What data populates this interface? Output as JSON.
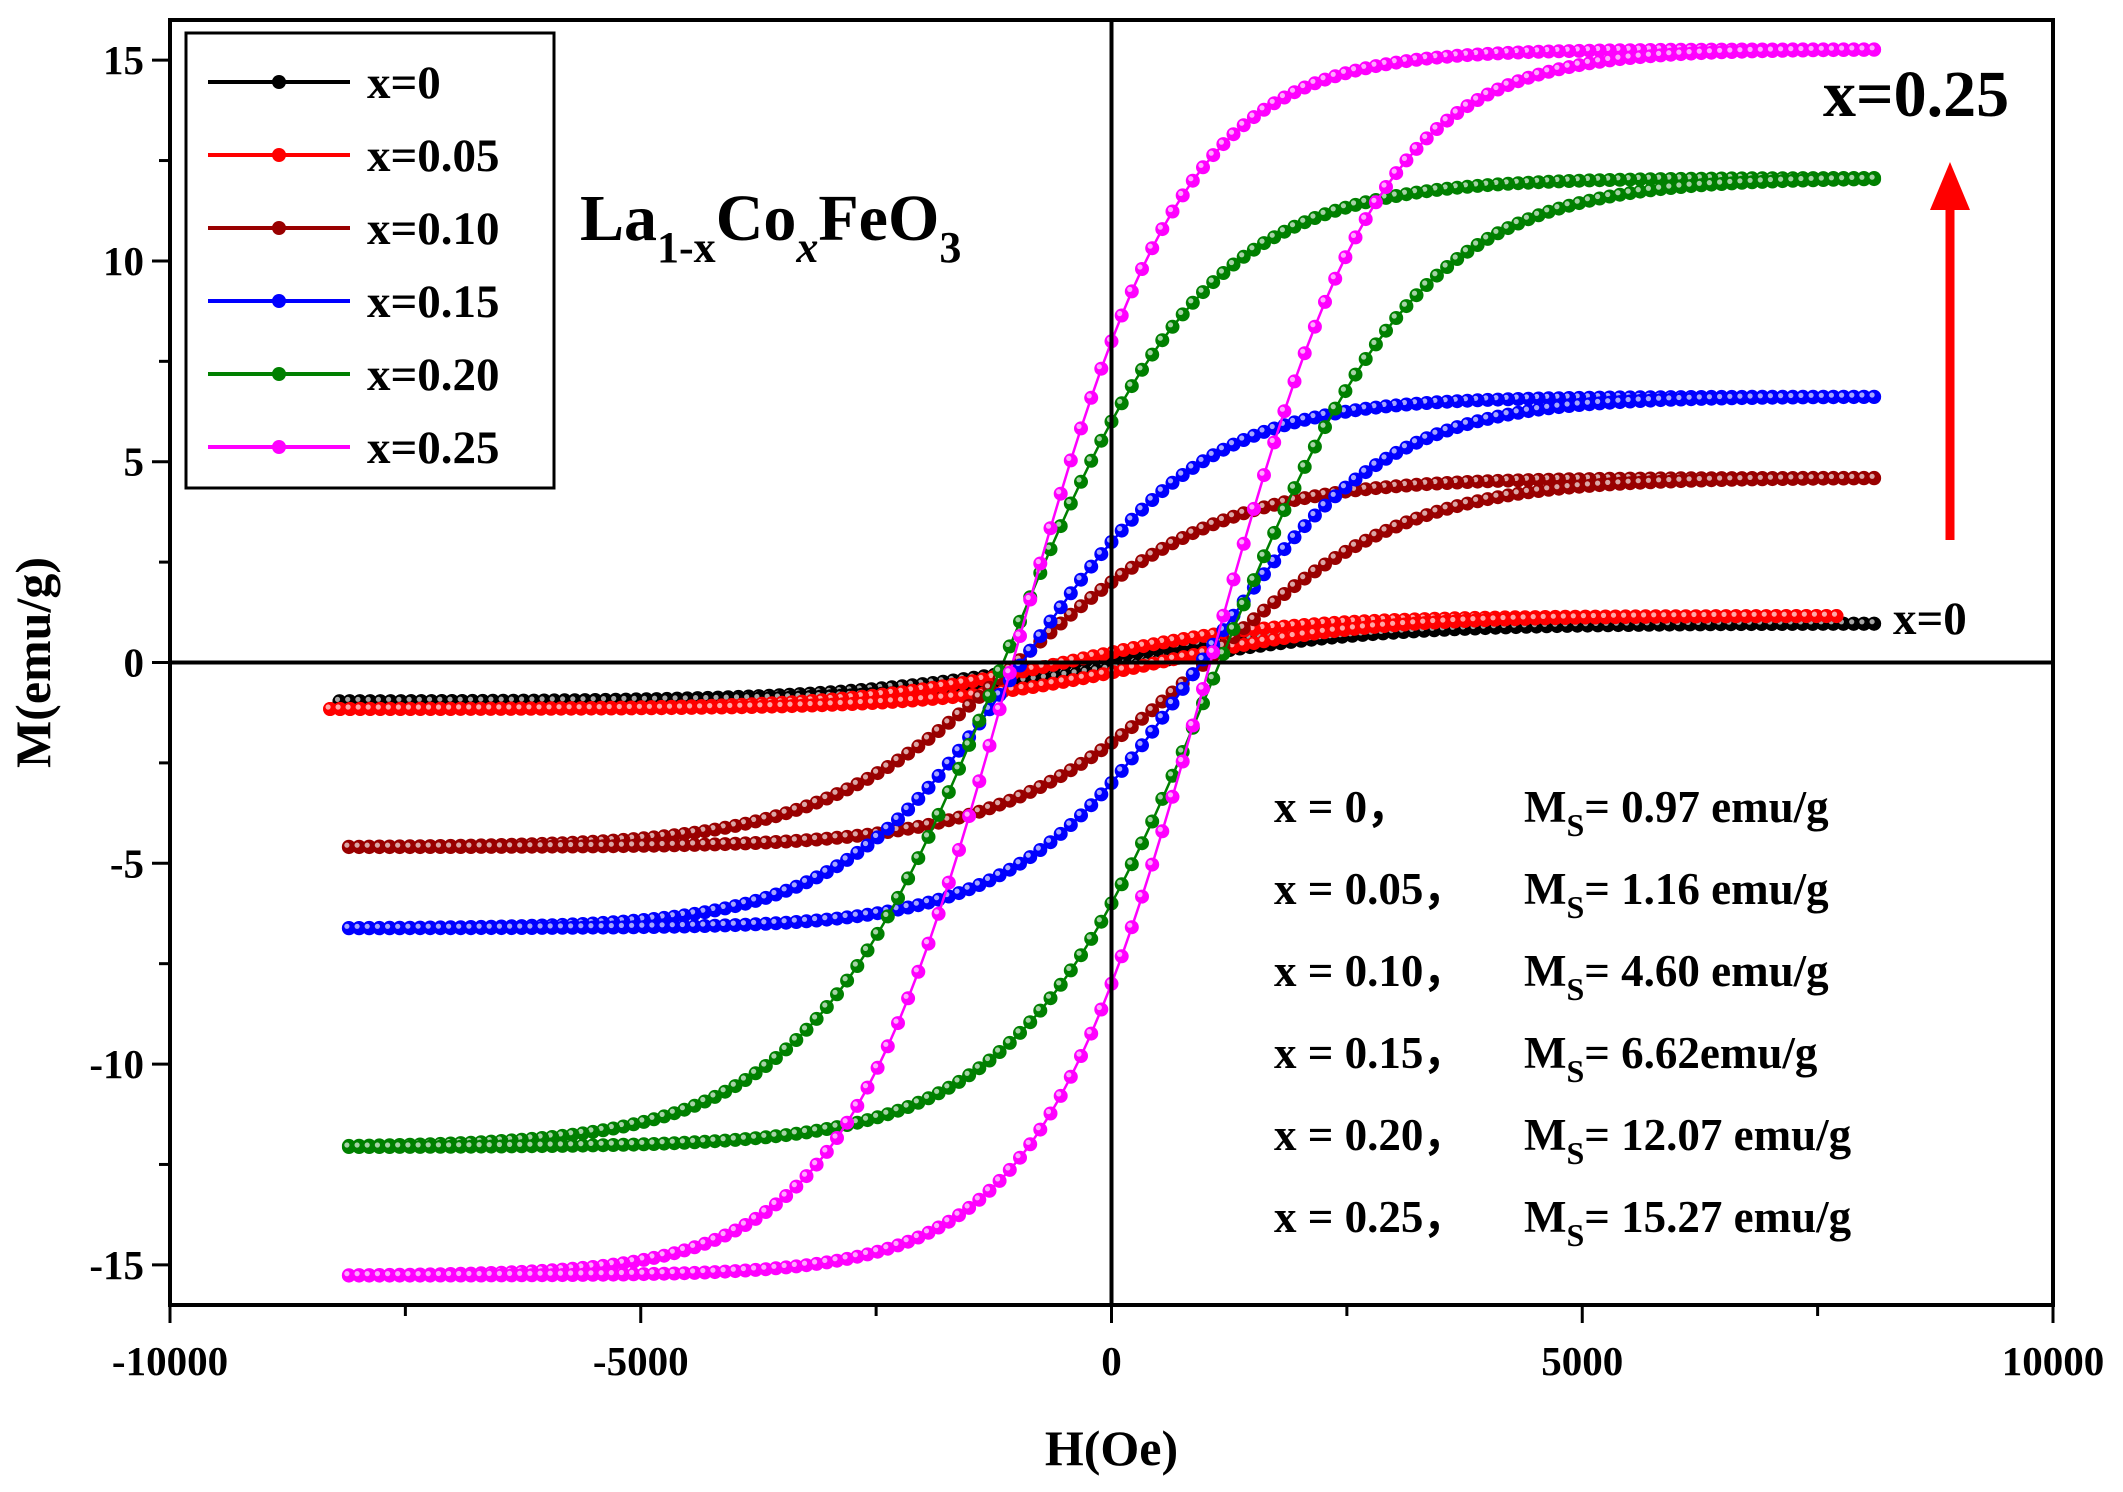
{
  "chart_data": {
    "type": "scatter",
    "title": "",
    "xlabel": "H(Oe)",
    "ylabel": "M(emu/g)",
    "xlim": [
      -10000,
      10000
    ],
    "ylim": [
      -16,
      16
    ],
    "xticks": [
      -10000,
      -5000,
      0,
      5000,
      10000
    ],
    "yticks": [
      -15,
      -10,
      -5,
      0,
      5,
      10,
      15
    ],
    "grid": false,
    "legend_position": "top-left",
    "series": [
      {
        "name": "x=0",
        "color": "#000000",
        "Ms": 0.97,
        "Hc": 400,
        "Mr": 0.15,
        "Hmin": -8200,
        "Hmax": 8100
      },
      {
        "name": "x=0.05",
        "color": "#ff0000",
        "Ms": 1.16,
        "Hc": 500,
        "Mr": 0.25,
        "Hmin": -8300,
        "Hmax": 7700
      },
      {
        "name": "x=0.10",
        "color": "#990000",
        "Ms": 4.6,
        "Hc": 1000,
        "Mr": 2.0,
        "Hmin": -8100,
        "Hmax": 8100
      },
      {
        "name": "x=0.15",
        "color": "#0000ff",
        "Ms": 6.62,
        "Hc": 950,
        "Mr": 3.0,
        "Hmin": -8100,
        "Hmax": 8100
      },
      {
        "name": "x=0.20",
        "color": "#008000",
        "Ms": 12.07,
        "Hc": 1150,
        "Mr": 6.0,
        "Hmin": -8100,
        "Hmax": 8100
      },
      {
        "name": "x=0.25",
        "color": "#ff00ff",
        "Ms": 15.27,
        "Hc": 1050,
        "Mr": 8.0,
        "Hmin": -8100,
        "Hmax": 8100
      }
    ],
    "annotations": {
      "formula": {
        "base1": "La",
        "sub1": "1-x",
        "base2": "Co",
        "sub2": "x",
        "base3": "FeO",
        "sub3": "3"
      },
      "arrow_top_label": "x=0.25",
      "arrow_bottom_label": "x=0",
      "arrow_color": "#ff0000",
      "ms_table": [
        {
          "x": "x = 0，",
          "label": "M",
          "sub": "S",
          "value": "= 0.97 emu/g"
        },
        {
          "x": "x = 0.05，",
          "label": "M",
          "sub": "S",
          "value": "= 1.16 emu/g"
        },
        {
          "x": "x = 0.10，",
          "label": "M",
          "sub": "S",
          "value": "= 4.60 emu/g"
        },
        {
          "x": "x = 0.15，",
          "label": "M",
          "sub": "S",
          "value": "= 6.62emu/g"
        },
        {
          "x": "x = 0.20，",
          "label": "M",
          "sub": "S",
          "value": "= 12.07 emu/g"
        },
        {
          "x": "x = 0.25，",
          "label": "M",
          "sub": "S",
          "value": "= 15.27 emu/g"
        }
      ]
    }
  }
}
